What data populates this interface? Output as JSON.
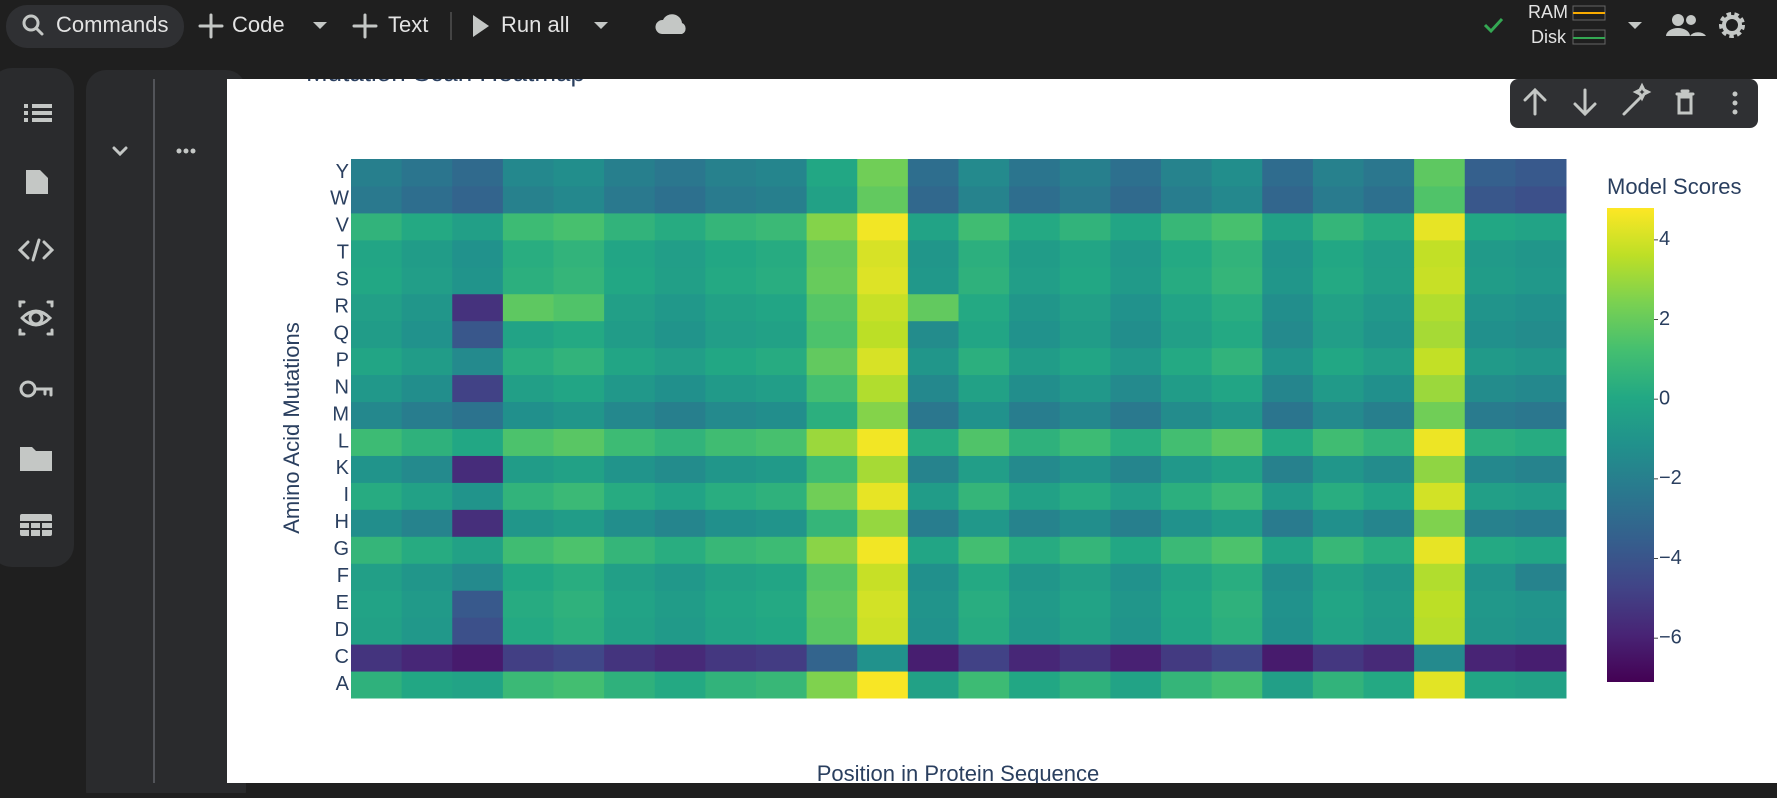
{
  "toolbar": {
    "commands": "Commands",
    "code": "Code",
    "text": "Text",
    "run_all": "Run all",
    "ram": "RAM",
    "disk": "Disk"
  },
  "chart_data": {
    "type": "heatmap",
    "title": "Mutation Scan Heatmap",
    "x_label": "Position in Protein Sequence",
    "y_label": "Amino Acid Mutations",
    "y_categories": [
      "A",
      "C",
      "D",
      "E",
      "F",
      "G",
      "H",
      "I",
      "K",
      "L",
      "M",
      "N",
      "P",
      "Q",
      "R",
      "S",
      "T",
      "V",
      "W",
      "Y"
    ],
    "z": [
      [
        0.5,
        0,
        -0.2,
        0.9,
        1.2,
        0.5,
        0.1,
        0.6,
        0.8,
        2.5,
        4.7,
        -0.3,
        1,
        0,
        0.5,
        -0.2,
        0.7,
        1.2,
        -0.4,
        0.6,
        0.1,
        4.3,
        -0.1,
        -0.3
      ],
      [
        -5.3,
        -5.8,
        -6.2,
        -4.9,
        -4.6,
        -5.3,
        -5.7,
        -5.2,
        -5,
        -3.3,
        -1.1,
        -6.1,
        -4.8,
        -5.8,
        -5.3,
        -6,
        -5.1,
        -4.6,
        -6.2,
        -5.2,
        -5.7,
        -1.5,
        -5.9,
        -6.1
      ],
      [
        -0.3,
        -0.8,
        -4.2,
        0.1,
        0.4,
        -0.3,
        -0.7,
        -0.2,
        0,
        1.7,
        3.9,
        -1.1,
        0.2,
        -0.8,
        -0.3,
        -1,
        -0.1,
        0.4,
        -1.2,
        -0.2,
        -0.7,
        3.5,
        -0.9,
        -1.1
      ],
      [
        -0.2,
        -0.7,
        -3.8,
        0.2,
        0.5,
        -0.2,
        -0.6,
        -0.1,
        0.1,
        1.8,
        4,
        -1,
        0.3,
        -0.7,
        -0.2,
        -0.9,
        0,
        0.5,
        -1.1,
        -0.1,
        -0.6,
        3.6,
        -0.8,
        -1
      ],
      [
        -0.4,
        -0.9,
        -1.5,
        0,
        0.3,
        -0.4,
        -0.8,
        -0.3,
        -0.1,
        1.6,
        3.8,
        -1.2,
        0.1,
        -0.9,
        -0.4,
        -1.1,
        -0.2,
        0.3,
        -1.3,
        -0.3,
        -0.8,
        3.4,
        -1,
        -1.8
      ],
      [
        0.7,
        0.2,
        -0.3,
        1.1,
        1.4,
        0.7,
        0.3,
        0.8,
        1,
        2.7,
        4.6,
        -0.1,
        1.2,
        0.2,
        0.7,
        0,
        0.9,
        1.4,
        -0.2,
        0.8,
        0.3,
        4.4,
        0.1,
        -0.1
      ],
      [
        -1.3,
        -1.8,
        -5.5,
        -0.9,
        -0.6,
        -1.3,
        -1.7,
        -1.2,
        -1,
        0.7,
        2.9,
        -2.1,
        -0.8,
        -1.8,
        -1.3,
        -2,
        -1.1,
        -0.6,
        -2.2,
        -1.2,
        -1.7,
        2.5,
        -1.9,
        -2.1
      ],
      [
        0.2,
        -0.3,
        -1,
        0.6,
        0.9,
        0.2,
        -0.2,
        0.3,
        0.5,
        2.2,
        4.4,
        -0.6,
        0.7,
        -0.3,
        0.2,
        -0.5,
        0.4,
        0.9,
        -0.7,
        0.3,
        -0.2,
        4,
        -0.4,
        -0.6
      ],
      [
        -1,
        -1.5,
        -5.6,
        -0.6,
        -0.3,
        -1,
        -1.4,
        -0.9,
        -0.7,
        1,
        3.2,
        -1.8,
        -0.5,
        -1.5,
        -1,
        -1.7,
        -0.8,
        -0.3,
        -1.9,
        -0.9,
        -1.4,
        2.8,
        -1.6,
        -1.8
      ],
      [
        1,
        0.5,
        0,
        1.4,
        1.7,
        1,
        0.6,
        1.1,
        1.3,
        3,
        4.6,
        0.2,
        1.5,
        0.5,
        1,
        0.3,
        1.2,
        1.7,
        0.1,
        1.1,
        0.6,
        4.5,
        0.4,
        0.2
      ],
      [
        -1.6,
        -2.1,
        -2.6,
        -1.2,
        -0.9,
        -1.6,
        -2,
        -1.5,
        -1.3,
        0.4,
        2.6,
        -2.4,
        -1.1,
        -2.1,
        -1.6,
        -2.3,
        -1.4,
        -0.9,
        -2.5,
        -1.5,
        -2,
        2.2,
        -2.2,
        -2.4
      ],
      [
        -0.8,
        -1.3,
        -4.8,
        -0.4,
        -0.1,
        -0.8,
        -1.2,
        -0.7,
        -0.5,
        1.2,
        3.4,
        -1.6,
        -0.3,
        -1.3,
        -0.8,
        -1.5,
        -0.6,
        -0.1,
        -1.7,
        -0.7,
        -1.2,
        3,
        -1.4,
        -1.6
      ],
      [
        -0.1,
        -0.6,
        -1.5,
        0.3,
        0.6,
        -0.1,
        -0.5,
        0,
        0.2,
        1.9,
        4.1,
        -0.9,
        0.4,
        -0.6,
        -0.1,
        -0.8,
        0.1,
        0.6,
        -1,
        0,
        -0.5,
        3.7,
        -0.7,
        -0.9
      ],
      [
        -0.6,
        -1.1,
        -3.9,
        -0.2,
        0.1,
        -0.6,
        -1,
        -0.5,
        -0.3,
        1.4,
        3.6,
        -1.4,
        -0.1,
        -1.1,
        -0.6,
        -1.3,
        -0.4,
        0.1,
        -1.5,
        -0.5,
        -1,
        3.2,
        -1.2,
        -1.4
      ],
      [
        -0.4,
        -0.9,
        -5.4,
        1.8,
        1.5,
        -0.4,
        -0.8,
        -0.3,
        -0.1,
        1.6,
        3.8,
        1.9,
        0.1,
        -0.9,
        -0.4,
        -1.1,
        -0.2,
        0.3,
        -1.3,
        -0.3,
        -0.8,
        3.4,
        -1,
        -1.2
      ],
      [
        0,
        -0.5,
        -1,
        0.4,
        0.7,
        0,
        -0.4,
        0.1,
        0.3,
        2,
        4.2,
        -0.8,
        0.5,
        -0.5,
        0,
        -0.7,
        0.2,
        0.7,
        -0.9,
        0.1,
        -0.4,
        3.8,
        -0.6,
        -0.8
      ],
      [
        -0.1,
        -0.6,
        -1.1,
        0.3,
        0.6,
        -0.1,
        -0.5,
        0,
        0.2,
        1.9,
        4.1,
        -0.9,
        0.4,
        -0.6,
        -0.1,
        -0.8,
        0.1,
        0.6,
        -1,
        0,
        -0.5,
        3.7,
        -0.7,
        -0.9
      ],
      [
        0.6,
        0.1,
        -0.4,
        1,
        1.3,
        0.6,
        0.2,
        0.7,
        0.9,
        2.6,
        4.6,
        -0.2,
        1.1,
        0.1,
        0.6,
        -0.1,
        0.8,
        1.3,
        -0.3,
        0.7,
        0.2,
        4.4,
        0,
        -0.2
      ],
      [
        -2.3,
        -2.8,
        -3.3,
        -1.9,
        -1.6,
        -2.3,
        -2.7,
        -2.2,
        -2,
        -0.3,
        1.9,
        -3.1,
        -1.8,
        -2.8,
        -2.3,
        -3,
        -2.1,
        -1.6,
        -3.2,
        -2.2,
        -2.7,
        1.5,
        -3.9,
        -4.2
      ],
      [
        -2,
        -2.5,
        -3,
        -1.6,
        -1.3,
        -2,
        -2.4,
        -1.9,
        -1.7,
        0,
        2.2,
        -2.8,
        -1.5,
        -2.5,
        -2,
        -2.7,
        -1.8,
        -1.3,
        -2.9,
        -1.9,
        -2.4,
        1.8,
        -3.5,
        -3.8
      ]
    ],
    "colorscale": "Viridis",
    "zlim": [
      -7.1,
      4.8
    ],
    "colorbar_title": "Model Scores",
    "colorbar_ticks": [
      {
        "value": -6,
        "label": "−6"
      },
      {
        "value": -4,
        "label": "−4"
      },
      {
        "value": -2,
        "label": "−2"
      },
      0,
      2,
      4
    ]
  }
}
